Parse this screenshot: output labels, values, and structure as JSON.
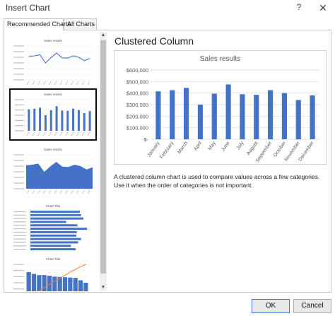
{
  "window": {
    "title": "Insert Chart",
    "help_label": "?",
    "close_label": "✕"
  },
  "tabs": [
    {
      "label": "Recommended Charts",
      "active": true
    },
    {
      "label": "All Charts",
      "active": false
    }
  ],
  "gallery": {
    "scroll_up": "▲",
    "scroll_down": "▼",
    "thumbnails": [
      {
        "title": "Sales results",
        "kind": "line",
        "selected": false
      },
      {
        "title": "Sales results",
        "kind": "clustered-column",
        "selected": true
      },
      {
        "title": "Sales results",
        "kind": "area",
        "selected": false
      },
      {
        "title": "Chart Title",
        "kind": "bar",
        "selected": false
      },
      {
        "title": "Chart Title",
        "kind": "pareto",
        "selected": false
      }
    ]
  },
  "preview": {
    "heading": "Clustered Column",
    "description": "A clustered column chart is used to compare values across a few categories. Use it when the order of categories is not important."
  },
  "buttons": {
    "ok": "OK",
    "cancel": "Cancel"
  },
  "colors": {
    "series": "#4472c4",
    "pareto_line": "#ed7d31"
  },
  "chart_data": {
    "type": "bar",
    "title": "Sales results",
    "categories": [
      "January",
      "February",
      "March",
      "April",
      "May",
      "June",
      "July",
      "August",
      "September",
      "October",
      "November",
      "December"
    ],
    "values": [
      415000,
      425000,
      445000,
      300000,
      395000,
      475000,
      390000,
      385000,
      425000,
      400000,
      340000,
      380000
    ],
    "y_tick_labels": [
      "$-",
      "$100,000",
      "$200,000",
      "$300,000",
      "$400,000",
      "$500,000",
      "$600,000"
    ],
    "ylim": [
      0,
      600000
    ],
    "grid": true,
    "legend": "none"
  }
}
